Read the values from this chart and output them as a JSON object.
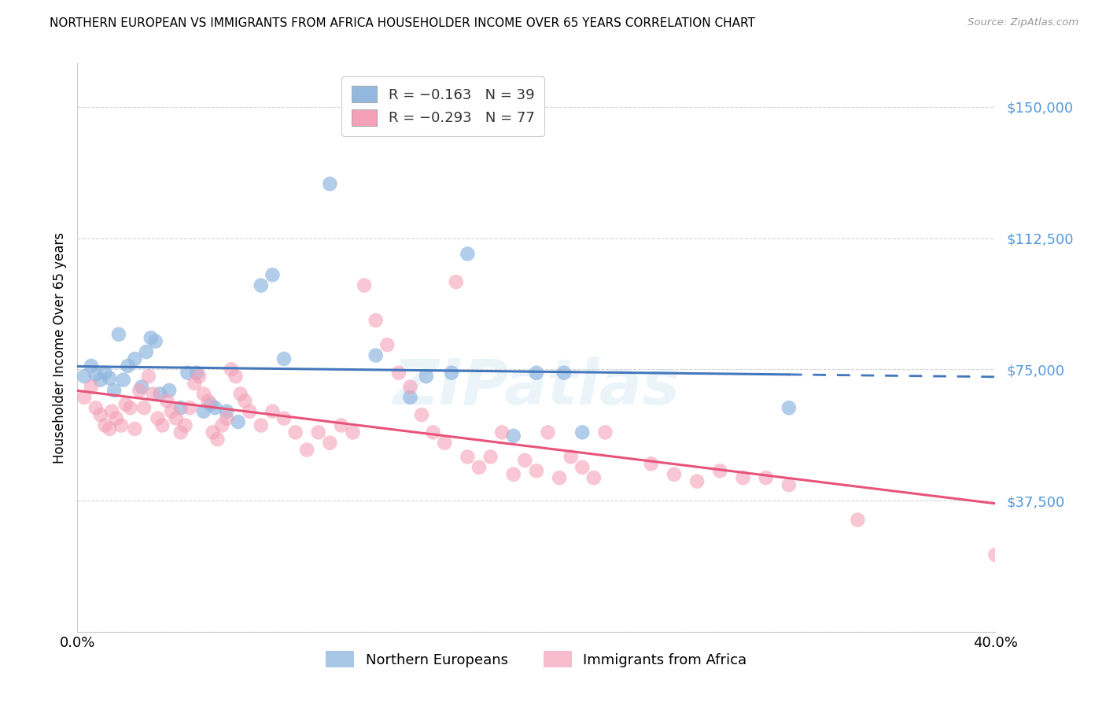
{
  "title": "NORTHERN EUROPEAN VS IMMIGRANTS FROM AFRICA HOUSEHOLDER INCOME OVER 65 YEARS CORRELATION CHART",
  "source": "Source: ZipAtlas.com",
  "ylabel": "Householder Income Over 65 years",
  "yticks": [
    0,
    37500,
    75000,
    112500,
    150000
  ],
  "ytick_labels": [
    "",
    "$37,500",
    "$75,000",
    "$112,500",
    "$150,000"
  ],
  "xlim": [
    0.0,
    0.4
  ],
  "ylim": [
    0,
    162500
  ],
  "legend_label1": "Northern Europeans",
  "legend_label2": "Immigrants from Africa",
  "blue_color": "#92B8E0",
  "pink_color": "#F4A0B8",
  "blue_line_color": "#4477BB",
  "pink_line_color": "#E8537A",
  "watermark": "ZIPatlas",
  "ytick_color": "#5599DD",
  "blue_scatter": [
    [
      0.003,
      73000
    ],
    [
      0.006,
      76000
    ],
    [
      0.008,
      73500
    ],
    [
      0.01,
      72000
    ],
    [
      0.012,
      74000
    ],
    [
      0.014,
      72500
    ],
    [
      0.016,
      69000
    ],
    [
      0.018,
      85000
    ],
    [
      0.02,
      72000
    ],
    [
      0.022,
      76000
    ],
    [
      0.025,
      78000
    ],
    [
      0.028,
      70000
    ],
    [
      0.03,
      80000
    ],
    [
      0.032,
      84000
    ],
    [
      0.034,
      83000
    ],
    [
      0.036,
      68000
    ],
    [
      0.04,
      69000
    ],
    [
      0.045,
      64000
    ],
    [
      0.048,
      74000
    ],
    [
      0.052,
      74000
    ],
    [
      0.055,
      63000
    ],
    [
      0.058,
      65000
    ],
    [
      0.06,
      64000
    ],
    [
      0.065,
      63000
    ],
    [
      0.07,
      60000
    ],
    [
      0.08,
      99000
    ],
    [
      0.085,
      102000
    ],
    [
      0.09,
      78000
    ],
    [
      0.11,
      128000
    ],
    [
      0.13,
      79000
    ],
    [
      0.145,
      67000
    ],
    [
      0.152,
      73000
    ],
    [
      0.163,
      74000
    ],
    [
      0.17,
      108000
    ],
    [
      0.19,
      56000
    ],
    [
      0.2,
      74000
    ],
    [
      0.212,
      74000
    ],
    [
      0.22,
      57000
    ],
    [
      0.31,
      64000
    ]
  ],
  "pink_scatter": [
    [
      0.003,
      67000
    ],
    [
      0.006,
      70000
    ],
    [
      0.008,
      64000
    ],
    [
      0.01,
      62000
    ],
    [
      0.012,
      59000
    ],
    [
      0.014,
      58000
    ],
    [
      0.015,
      63000
    ],
    [
      0.017,
      61000
    ],
    [
      0.019,
      59000
    ],
    [
      0.021,
      65000
    ],
    [
      0.023,
      64000
    ],
    [
      0.025,
      58000
    ],
    [
      0.027,
      69000
    ],
    [
      0.029,
      64000
    ],
    [
      0.031,
      73000
    ],
    [
      0.033,
      68000
    ],
    [
      0.035,
      61000
    ],
    [
      0.037,
      59000
    ],
    [
      0.039,
      66000
    ],
    [
      0.041,
      63000
    ],
    [
      0.043,
      61000
    ],
    [
      0.045,
      57000
    ],
    [
      0.047,
      59000
    ],
    [
      0.049,
      64000
    ],
    [
      0.051,
      71000
    ],
    [
      0.053,
      73000
    ],
    [
      0.055,
      68000
    ],
    [
      0.057,
      66000
    ],
    [
      0.059,
      57000
    ],
    [
      0.061,
      55000
    ],
    [
      0.063,
      59000
    ],
    [
      0.065,
      61000
    ],
    [
      0.067,
      75000
    ],
    [
      0.069,
      73000
    ],
    [
      0.071,
      68000
    ],
    [
      0.073,
      66000
    ],
    [
      0.075,
      63000
    ],
    [
      0.08,
      59000
    ],
    [
      0.085,
      63000
    ],
    [
      0.09,
      61000
    ],
    [
      0.095,
      57000
    ],
    [
      0.1,
      52000
    ],
    [
      0.105,
      57000
    ],
    [
      0.11,
      54000
    ],
    [
      0.115,
      59000
    ],
    [
      0.12,
      57000
    ],
    [
      0.125,
      99000
    ],
    [
      0.13,
      89000
    ],
    [
      0.135,
      82000
    ],
    [
      0.14,
      74000
    ],
    [
      0.145,
      70000
    ],
    [
      0.15,
      62000
    ],
    [
      0.155,
      57000
    ],
    [
      0.16,
      54000
    ],
    [
      0.165,
      100000
    ],
    [
      0.17,
      50000
    ],
    [
      0.175,
      47000
    ],
    [
      0.18,
      50000
    ],
    [
      0.185,
      57000
    ],
    [
      0.19,
      45000
    ],
    [
      0.195,
      49000
    ],
    [
      0.2,
      46000
    ],
    [
      0.205,
      57000
    ],
    [
      0.21,
      44000
    ],
    [
      0.215,
      50000
    ],
    [
      0.22,
      47000
    ],
    [
      0.225,
      44000
    ],
    [
      0.23,
      57000
    ],
    [
      0.25,
      48000
    ],
    [
      0.26,
      45000
    ],
    [
      0.27,
      43000
    ],
    [
      0.28,
      46000
    ],
    [
      0.29,
      44000
    ],
    [
      0.3,
      44000
    ],
    [
      0.31,
      42000
    ],
    [
      0.34,
      32000
    ],
    [
      0.4,
      22000
    ]
  ]
}
